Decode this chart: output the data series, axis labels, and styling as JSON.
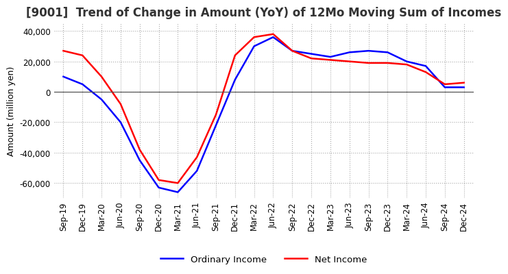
{
  "title": "[9001]  Trend of Change in Amount (YoY) of 12Mo Moving Sum of Incomes",
  "ylabel": "Amount (million yen)",
  "x_labels": [
    "Sep-19",
    "Dec-19",
    "Mar-20",
    "Jun-20",
    "Sep-20",
    "Dec-20",
    "Mar-21",
    "Jun-21",
    "Sep-21",
    "Dec-21",
    "Mar-22",
    "Jun-22",
    "Sep-22",
    "Dec-22",
    "Mar-23",
    "Jun-23",
    "Sep-23",
    "Dec-23",
    "Mar-24",
    "Jun-24",
    "Sep-24",
    "Dec-24"
  ],
  "ordinary_income": [
    10000,
    5000,
    -5000,
    -20000,
    -45000,
    -63000,
    -66000,
    -52000,
    -22000,
    8000,
    30000,
    36000,
    27000,
    25000,
    23000,
    26000,
    27000,
    26000,
    20000,
    17000,
    3000,
    3000
  ],
  "net_income": [
    27000,
    24000,
    10000,
    -8000,
    -38000,
    -58000,
    -60000,
    -43000,
    -15000,
    24000,
    36000,
    38000,
    27000,
    22000,
    21000,
    20000,
    19000,
    19000,
    18000,
    13000,
    5000,
    6000
  ],
  "ordinary_color": "#0000FF",
  "net_color": "#FF0000",
  "ylim": [
    -70000,
    45000
  ],
  "yticks": [
    -60000,
    -40000,
    -20000,
    0,
    20000,
    40000
  ],
  "background_color": "#FFFFFF",
  "grid_color": "#AAAAAA",
  "title_fontsize": 12,
  "label_fontsize": 9,
  "tick_fontsize": 8.5,
  "linewidth": 1.8
}
